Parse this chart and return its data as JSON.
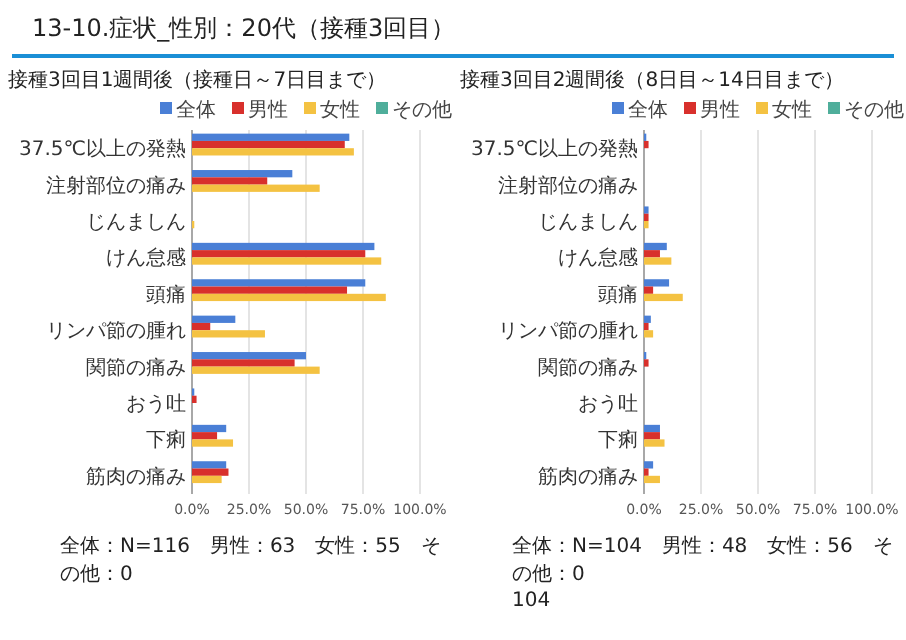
{
  "chart_data": [
    {
      "type": "bar",
      "orientation": "horizontal",
      "title": "13-10.症状_性別：20代（接種3回目）",
      "subtitle": "接種3回目1週間後（接種日～7日目まで）",
      "categories": [
        "37.5℃以上の発熱",
        "注射部位の痛み",
        "じんましん",
        "けん怠感",
        "頭痛",
        "リンパ節の腫れ",
        "関節の痛み",
        "おう吐",
        "下痢",
        "筋肉の痛み"
      ],
      "series": [
        {
          "name": "全体",
          "color": "#4a7fd6",
          "values": [
            69,
            44,
            0,
            80,
            76,
            19,
            50,
            1,
            15,
            15
          ]
        },
        {
          "name": "男性",
          "color": "#d8302c",
          "values": [
            67,
            33,
            0,
            76,
            68,
            8,
            45,
            2,
            11,
            16
          ]
        },
        {
          "name": "女性",
          "color": "#f4c242",
          "values": [
            71,
            56,
            1,
            83,
            85,
            32,
            56,
            0,
            18,
            13
          ]
        },
        {
          "name": "その他",
          "color": "#4fae9b",
          "values": [
            0,
            0,
            0,
            0,
            0,
            0,
            0,
            0,
            0,
            0
          ]
        }
      ],
      "xlim": [
        0,
        100
      ],
      "xticks": [
        {
          "value": 0,
          "label": "0.0%"
        },
        {
          "value": 25,
          "label": "25.0%"
        },
        {
          "value": 50,
          "label": "50.0%"
        },
        {
          "value": 75,
          "label": "75.0%"
        },
        {
          "value": 100,
          "label": "100.0%"
        }
      ],
      "grid": "x",
      "legend": "top",
      "annotations": [
        "全体：N=116　男性：63　女性：55　その他：0"
      ]
    },
    {
      "type": "bar",
      "orientation": "horizontal",
      "title": "接種3回目2週間後（8日目～14日目まで）",
      "categories": [
        "37.5℃以上の発熱",
        "注射部位の痛み",
        "じんましん",
        "けん怠感",
        "頭痛",
        "リンパ節の腫れ",
        "関節の痛み",
        "おう吐",
        "下痢",
        "筋肉の痛み"
      ],
      "series": [
        {
          "name": "全体",
          "color": "#4a7fd6",
          "values": [
            1,
            0,
            2,
            10,
            11,
            3,
            1,
            0,
            7,
            4
          ]
        },
        {
          "name": "男性",
          "color": "#d8302c",
          "values": [
            2,
            0,
            2,
            7,
            4,
            2,
            2,
            0,
            7,
            2
          ]
        },
        {
          "name": "女性",
          "color": "#f4c242",
          "values": [
            0,
            0,
            2,
            12,
            17,
            4,
            0,
            0,
            9,
            7
          ]
        },
        {
          "name": "その他",
          "color": "#4fae9b",
          "values": [
            0,
            0,
            0,
            0,
            0,
            0,
            0,
            0,
            0,
            0
          ]
        }
      ],
      "xlim": [
        0,
        100
      ],
      "xticks": [
        {
          "value": 0,
          "label": "0.0%"
        },
        {
          "value": 25,
          "label": "25.0%"
        },
        {
          "value": 50,
          "label": "50.0%"
        },
        {
          "value": 75,
          "label": "75.0%"
        },
        {
          "value": 100,
          "label": "100.0%"
        }
      ],
      "grid": "x",
      "legend": "top",
      "annotations": [
        "全体：N=104　男性：48　女性：56　その他：0",
        "104"
      ]
    }
  ]
}
